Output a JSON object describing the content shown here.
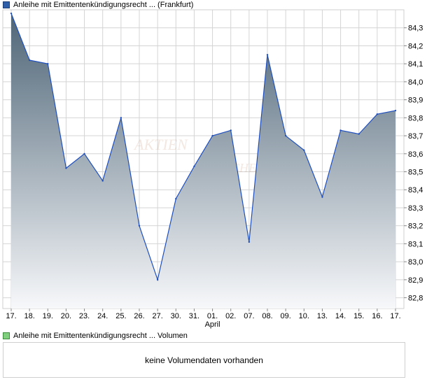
{
  "price_legend": {
    "label": "Anleihe mit Emittentenkündigungsrecht ... (Frankfurt)",
    "color": "#2e5fa8"
  },
  "volume_legend": {
    "label": "Anleihe mit Emittentenkündigungsrecht ... Volumen",
    "color": "#7fcf7f"
  },
  "volume_message": "keine Volumendaten vorhanden",
  "colors": {
    "line": "#1f4fbf",
    "fill_top": "#4e6577",
    "fill_bottom": "#f7f8fa",
    "grid": "#d4d4d4"
  },
  "chart_data": {
    "type": "area",
    "categories": [
      "17.",
      "18.",
      "19.",
      "20.",
      "23.",
      "24.",
      "25.",
      "26.",
      "27.",
      "30.",
      "31.",
      "01.",
      "02.",
      "07.",
      "08.",
      "09.",
      "10.",
      "13.",
      "14.",
      "15.",
      "16.",
      "17."
    ],
    "x_sublabels": {
      "11": "April"
    },
    "series": [
      {
        "values": [
          84.38,
          84.12,
          84.1,
          83.52,
          83.6,
          83.45,
          83.8,
          83.2,
          82.9,
          83.35,
          83.53,
          83.7,
          83.73,
          83.11,
          84.15,
          83.7,
          83.62,
          83.36,
          83.73,
          83.71,
          83.82,
          83.84
        ]
      }
    ],
    "y_ticks": [
      "84,3",
      "84,2",
      "84,1",
      "84,0",
      "83,9",
      "83,8",
      "83,7",
      "83,6",
      "83,5",
      "83,4",
      "83,3",
      "83,2",
      "83,1",
      "83,0",
      "82,9",
      "82,8"
    ],
    "ylim": [
      82.74,
      84.4
    ],
    "grid": true,
    "y_axis_side": "right",
    "xlabel": "",
    "ylabel": ""
  }
}
